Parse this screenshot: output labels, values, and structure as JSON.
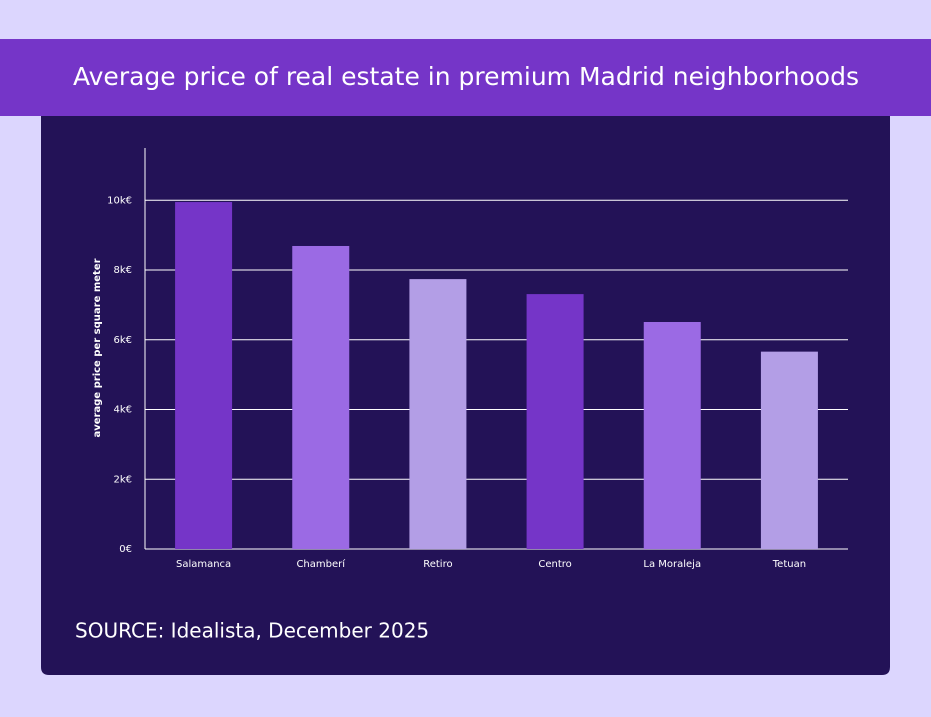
{
  "chart_data": {
    "type": "bar",
    "title": "Average price of real estate in premium Madrid neighborhoods",
    "y_label": "average price per square meter",
    "source": "SOURCE: Idealista, December 2025",
    "categories": [
      "Salamanca",
      "Chamberí",
      "Retiro",
      "Centro",
      "La Moraleja",
      "Tetuan"
    ],
    "values": [
      9950,
      8690,
      7740,
      7310,
      6510,
      5660
    ],
    "colors": [
      "#7535c8",
      "#9b6ae4",
      "#b39ee6",
      "#7535c8",
      "#9b6ae4",
      "#b39ee6"
    ],
    "ylim": [
      0,
      11500
    ],
    "yticks": [
      {
        "value": 0,
        "label": "0€"
      },
      {
        "value": 2000,
        "label": "2k€"
      },
      {
        "value": 4000,
        "label": "4k€"
      },
      {
        "value": 6000,
        "label": "6k€"
      },
      {
        "value": 8000,
        "label": "8k€"
      },
      {
        "value": 10000,
        "label": "10k€"
      }
    ],
    "grid": true
  }
}
